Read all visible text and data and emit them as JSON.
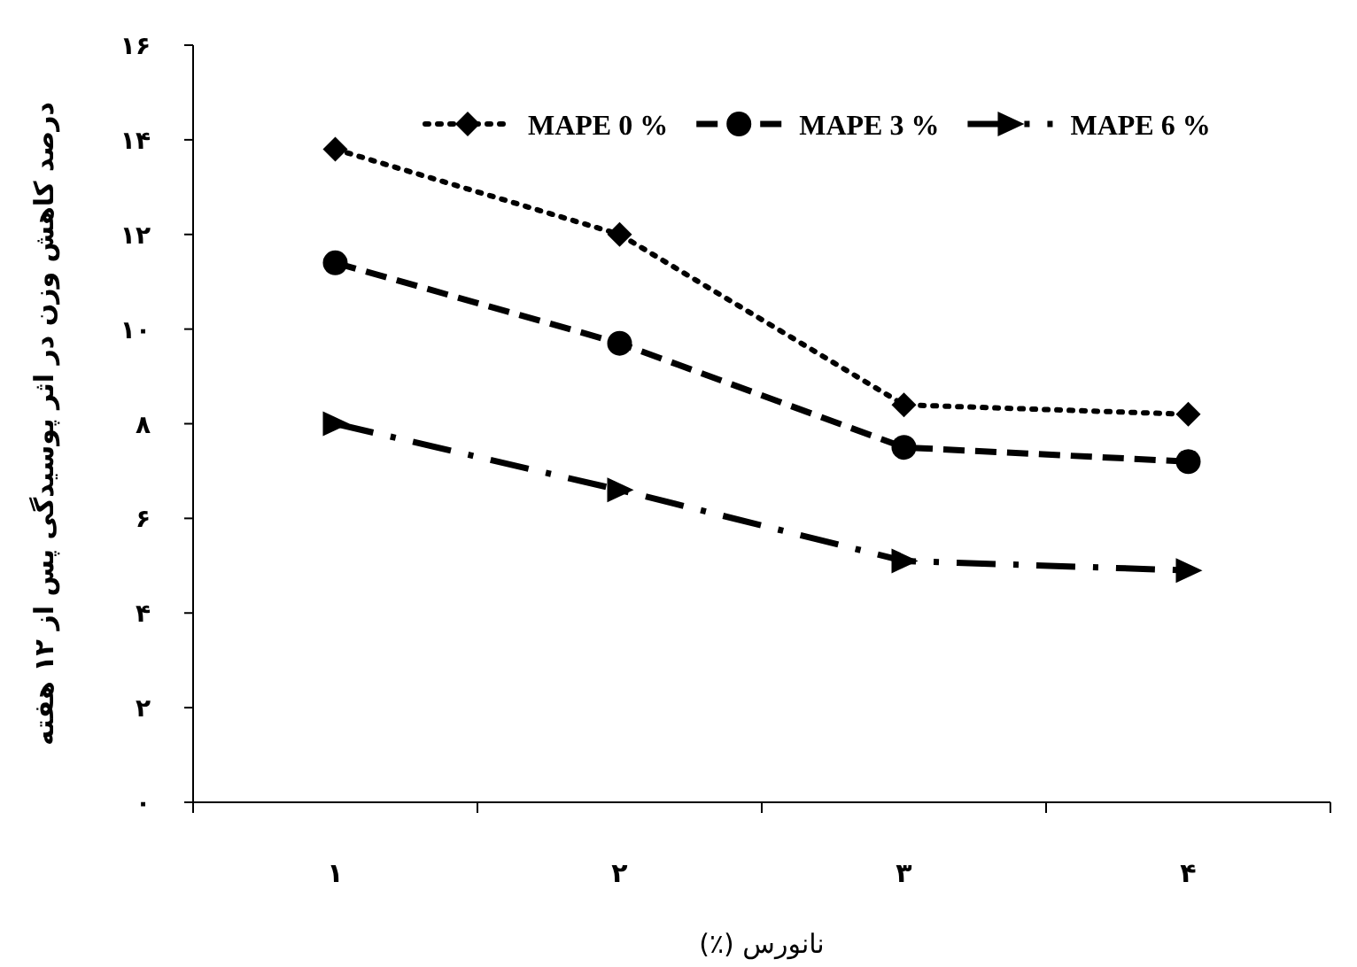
{
  "chart_data": {
    "type": "line",
    "xlabel": "نانورس (٪)",
    "ylabel": "درصد کاهش وزن در اثر پوسیدگی پس از ۱۲ هفته",
    "categories": [
      "۱",
      "۲",
      "۳",
      "۴"
    ],
    "ylim": [
      0,
      16
    ],
    "yticks": [
      {
        "value": 0,
        "label": "۰"
      },
      {
        "value": 2,
        "label": "۲"
      },
      {
        "value": 4,
        "label": "۴"
      },
      {
        "value": 6,
        "label": "۶"
      },
      {
        "value": 8,
        "label": "۸"
      },
      {
        "value": 10,
        "label": "۱۰"
      },
      {
        "value": 12,
        "label": "۱۲"
      },
      {
        "value": 14,
        "label": "۱۴"
      },
      {
        "value": 16,
        "label": "۱۶"
      }
    ],
    "grid": false,
    "legend": "top right",
    "series": [
      {
        "name": "MAPE 0 %",
        "color": "#000000",
        "marker": "diamond",
        "line_style": "dotted",
        "values": [
          13.8,
          12.0,
          8.4,
          8.2
        ]
      },
      {
        "name": "MAPE 3 %",
        "color": "#000000",
        "marker": "circle",
        "line_style": "dashed",
        "values": [
          11.4,
          9.7,
          7.5,
          7.2
        ]
      },
      {
        "name": "MAPE 6 %",
        "color": "#000000",
        "marker": "triangle",
        "line_style": "dashdot",
        "values": [
          8.0,
          6.6,
          5.1,
          4.9
        ]
      }
    ]
  }
}
